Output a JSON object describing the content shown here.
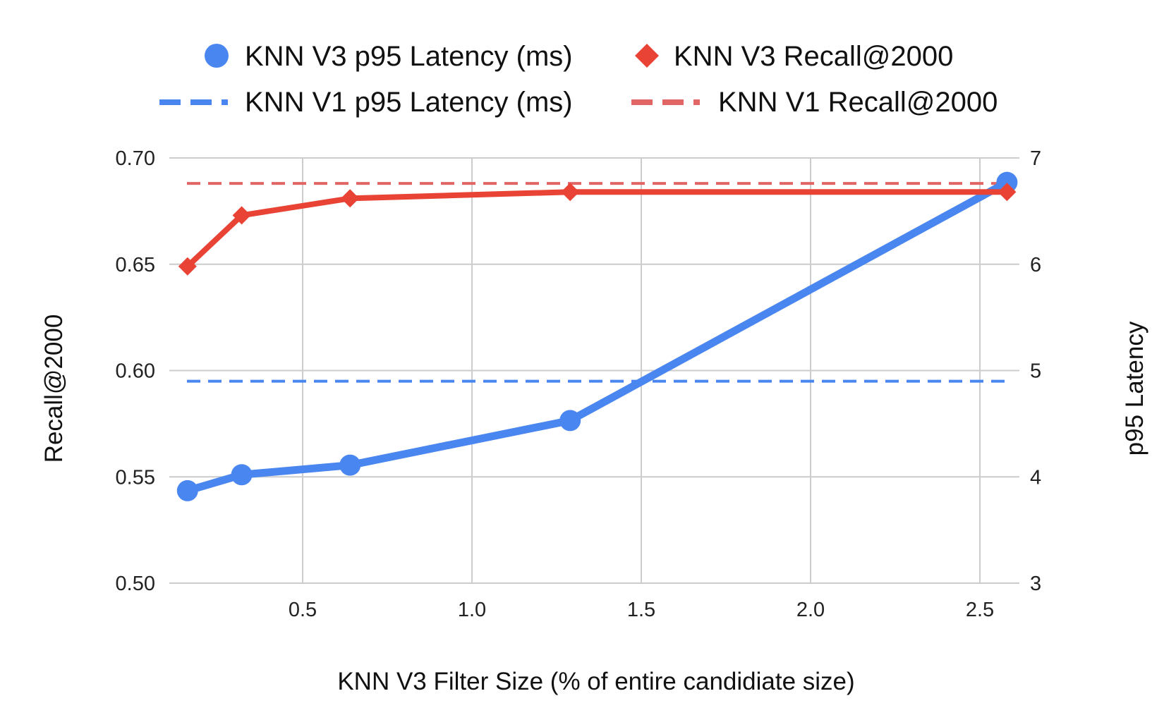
{
  "colors": {
    "latency_v3": "#4A86F0",
    "recall_v3": "#E84335",
    "latency_v1": "#4A86F0",
    "recall_v1": "#E06666",
    "grid": "#CCCCCC"
  },
  "legend": {
    "items": [
      {
        "label": "KNN V3 p95 Latency (ms)",
        "marker": "circle-icon",
        "series": "latency_v3"
      },
      {
        "label": "KNN V3 Recall@2000",
        "marker": "diamond-icon",
        "series": "recall_v3"
      },
      {
        "label": "KNN V1 p95 Latency (ms)",
        "marker": "dash-icon",
        "series": "latency_v1"
      },
      {
        "label": "KNN V1 Recall@2000",
        "marker": "dash-icon",
        "series": "recall_v1"
      }
    ]
  },
  "chart_data": {
    "type": "line",
    "title": "",
    "xlabel": "KNN V3 Filter Size (% of entire candidiate size)",
    "ylabel_left": "Recall@2000",
    "ylabel_right": "p95 Latency",
    "x_ticks": [
      "0.5",
      "1.0",
      "1.5",
      "2.0",
      "2.5"
    ],
    "y_left_ticks": [
      "0.50",
      "0.55",
      "0.60",
      "0.65",
      "0.70"
    ],
    "y_right_ticks": [
      "3",
      "4",
      "5",
      "6",
      "7"
    ],
    "xlim": [
      0.1,
      2.6
    ],
    "ylim_left": [
      0.5,
      0.7
    ],
    "ylim_right": [
      3,
      7
    ],
    "grid": true,
    "legend_position": "top",
    "series": [
      {
        "name": "KNN V3 p95 Latency (ms)",
        "axis": "right",
        "style": "solid-circle",
        "x": [
          0.16,
          0.32,
          0.64,
          1.29,
          2.58
        ],
        "values": [
          3.87,
          4.02,
          4.11,
          4.53,
          6.77
        ]
      },
      {
        "name": "KNN V3 Recall@2000",
        "axis": "left",
        "style": "solid-diamond",
        "x": [
          0.16,
          0.32,
          0.64,
          1.29,
          2.58
        ],
        "values": [
          0.649,
          0.673,
          0.681,
          0.684,
          0.684
        ]
      },
      {
        "name": "KNN V1 p95 Latency (ms)",
        "axis": "right",
        "style": "dashed",
        "x": [
          0.16,
          2.58
        ],
        "values": [
          4.9,
          4.9
        ]
      },
      {
        "name": "KNN V1 Recall@2000",
        "axis": "left",
        "style": "dashed",
        "x": [
          0.16,
          2.58
        ],
        "values": [
          0.688,
          0.688
        ]
      }
    ]
  }
}
